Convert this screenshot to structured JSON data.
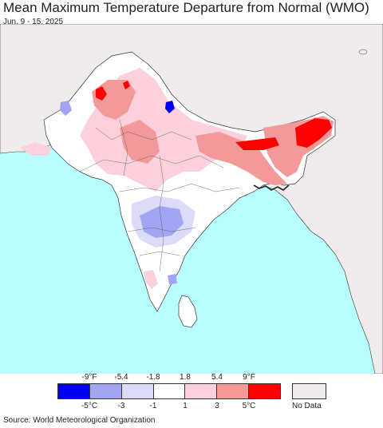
{
  "header": {
    "title": "Mean Maximum Temperature Departure from Normal (WMO)",
    "date_range": "Jun. 9 - 15, 2025"
  },
  "legend": {
    "fahrenheit_ticks": [
      "-9°F",
      "-5.4",
      "-1.8",
      "1.8",
      "5.4",
      "9°F"
    ],
    "celsius_ticks": [
      "-5°C",
      "-3",
      "-1",
      "1",
      "3",
      "5°C"
    ],
    "bins": [
      {
        "color": "#0000ee"
      },
      {
        "color": "#a3a5f2"
      },
      {
        "color": "#dcdcf8"
      },
      {
        "color": "#ffffff"
      },
      {
        "color": "#fcd0dc"
      },
      {
        "color": "#f4999a"
      },
      {
        "color": "#ff0000"
      }
    ],
    "no_data_label": "No Data",
    "no_data_color": "#f0ecee"
  },
  "colors": {
    "ocean": "#b8ffff",
    "no_data_land": "#f0ecee",
    "neutral": "#ffffff",
    "warm_light": "#fcd0dc",
    "warm_mid": "#f4999a",
    "warm_strong": "#ff0000",
    "cool_light": "#dcdcf8",
    "cool_mid": "#a3a5f2",
    "cool_strong": "#0000ee",
    "boundary": "#333333"
  },
  "footer": {
    "source": "Source: World Meteorological Organization"
  }
}
